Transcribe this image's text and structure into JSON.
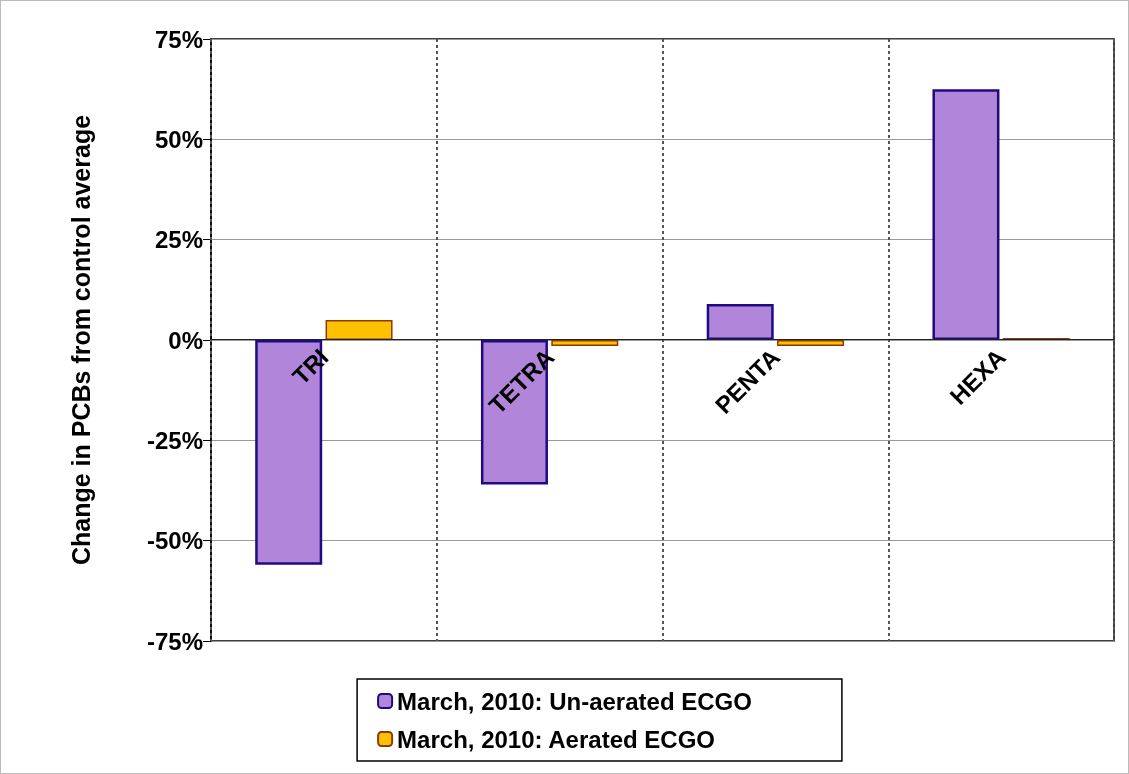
{
  "chart_data": {
    "type": "bar",
    "ylabel": "Change in PCBs from control average",
    "categories": [
      "TRI",
      "TETRA",
      "PENTA",
      "HEXA"
    ],
    "series": [
      {
        "name": "March, 2010: Un-aerated ECGO",
        "color": "#b085da",
        "values": [
          -56,
          -36,
          9,
          62.5
        ]
      },
      {
        "name": "March, 2010: Aerated ECGO",
        "color": "#ffc000",
        "values": [
          5,
          -1.5,
          -1.5,
          0.5
        ]
      }
    ],
    "ylim": [
      -75,
      75
    ],
    "yticks": [
      {
        "value": -75,
        "label": "-75%"
      },
      {
        "value": -50,
        "label": "-50%"
      },
      {
        "value": -25,
        "label": "-25%"
      },
      {
        "value": 0,
        "label": "0%"
      },
      {
        "value": 25,
        "label": "25%"
      },
      {
        "value": 50,
        "label": "50%"
      },
      {
        "value": 75,
        "label": "75%"
      }
    ],
    "grid": true,
    "legend": "bottom"
  }
}
